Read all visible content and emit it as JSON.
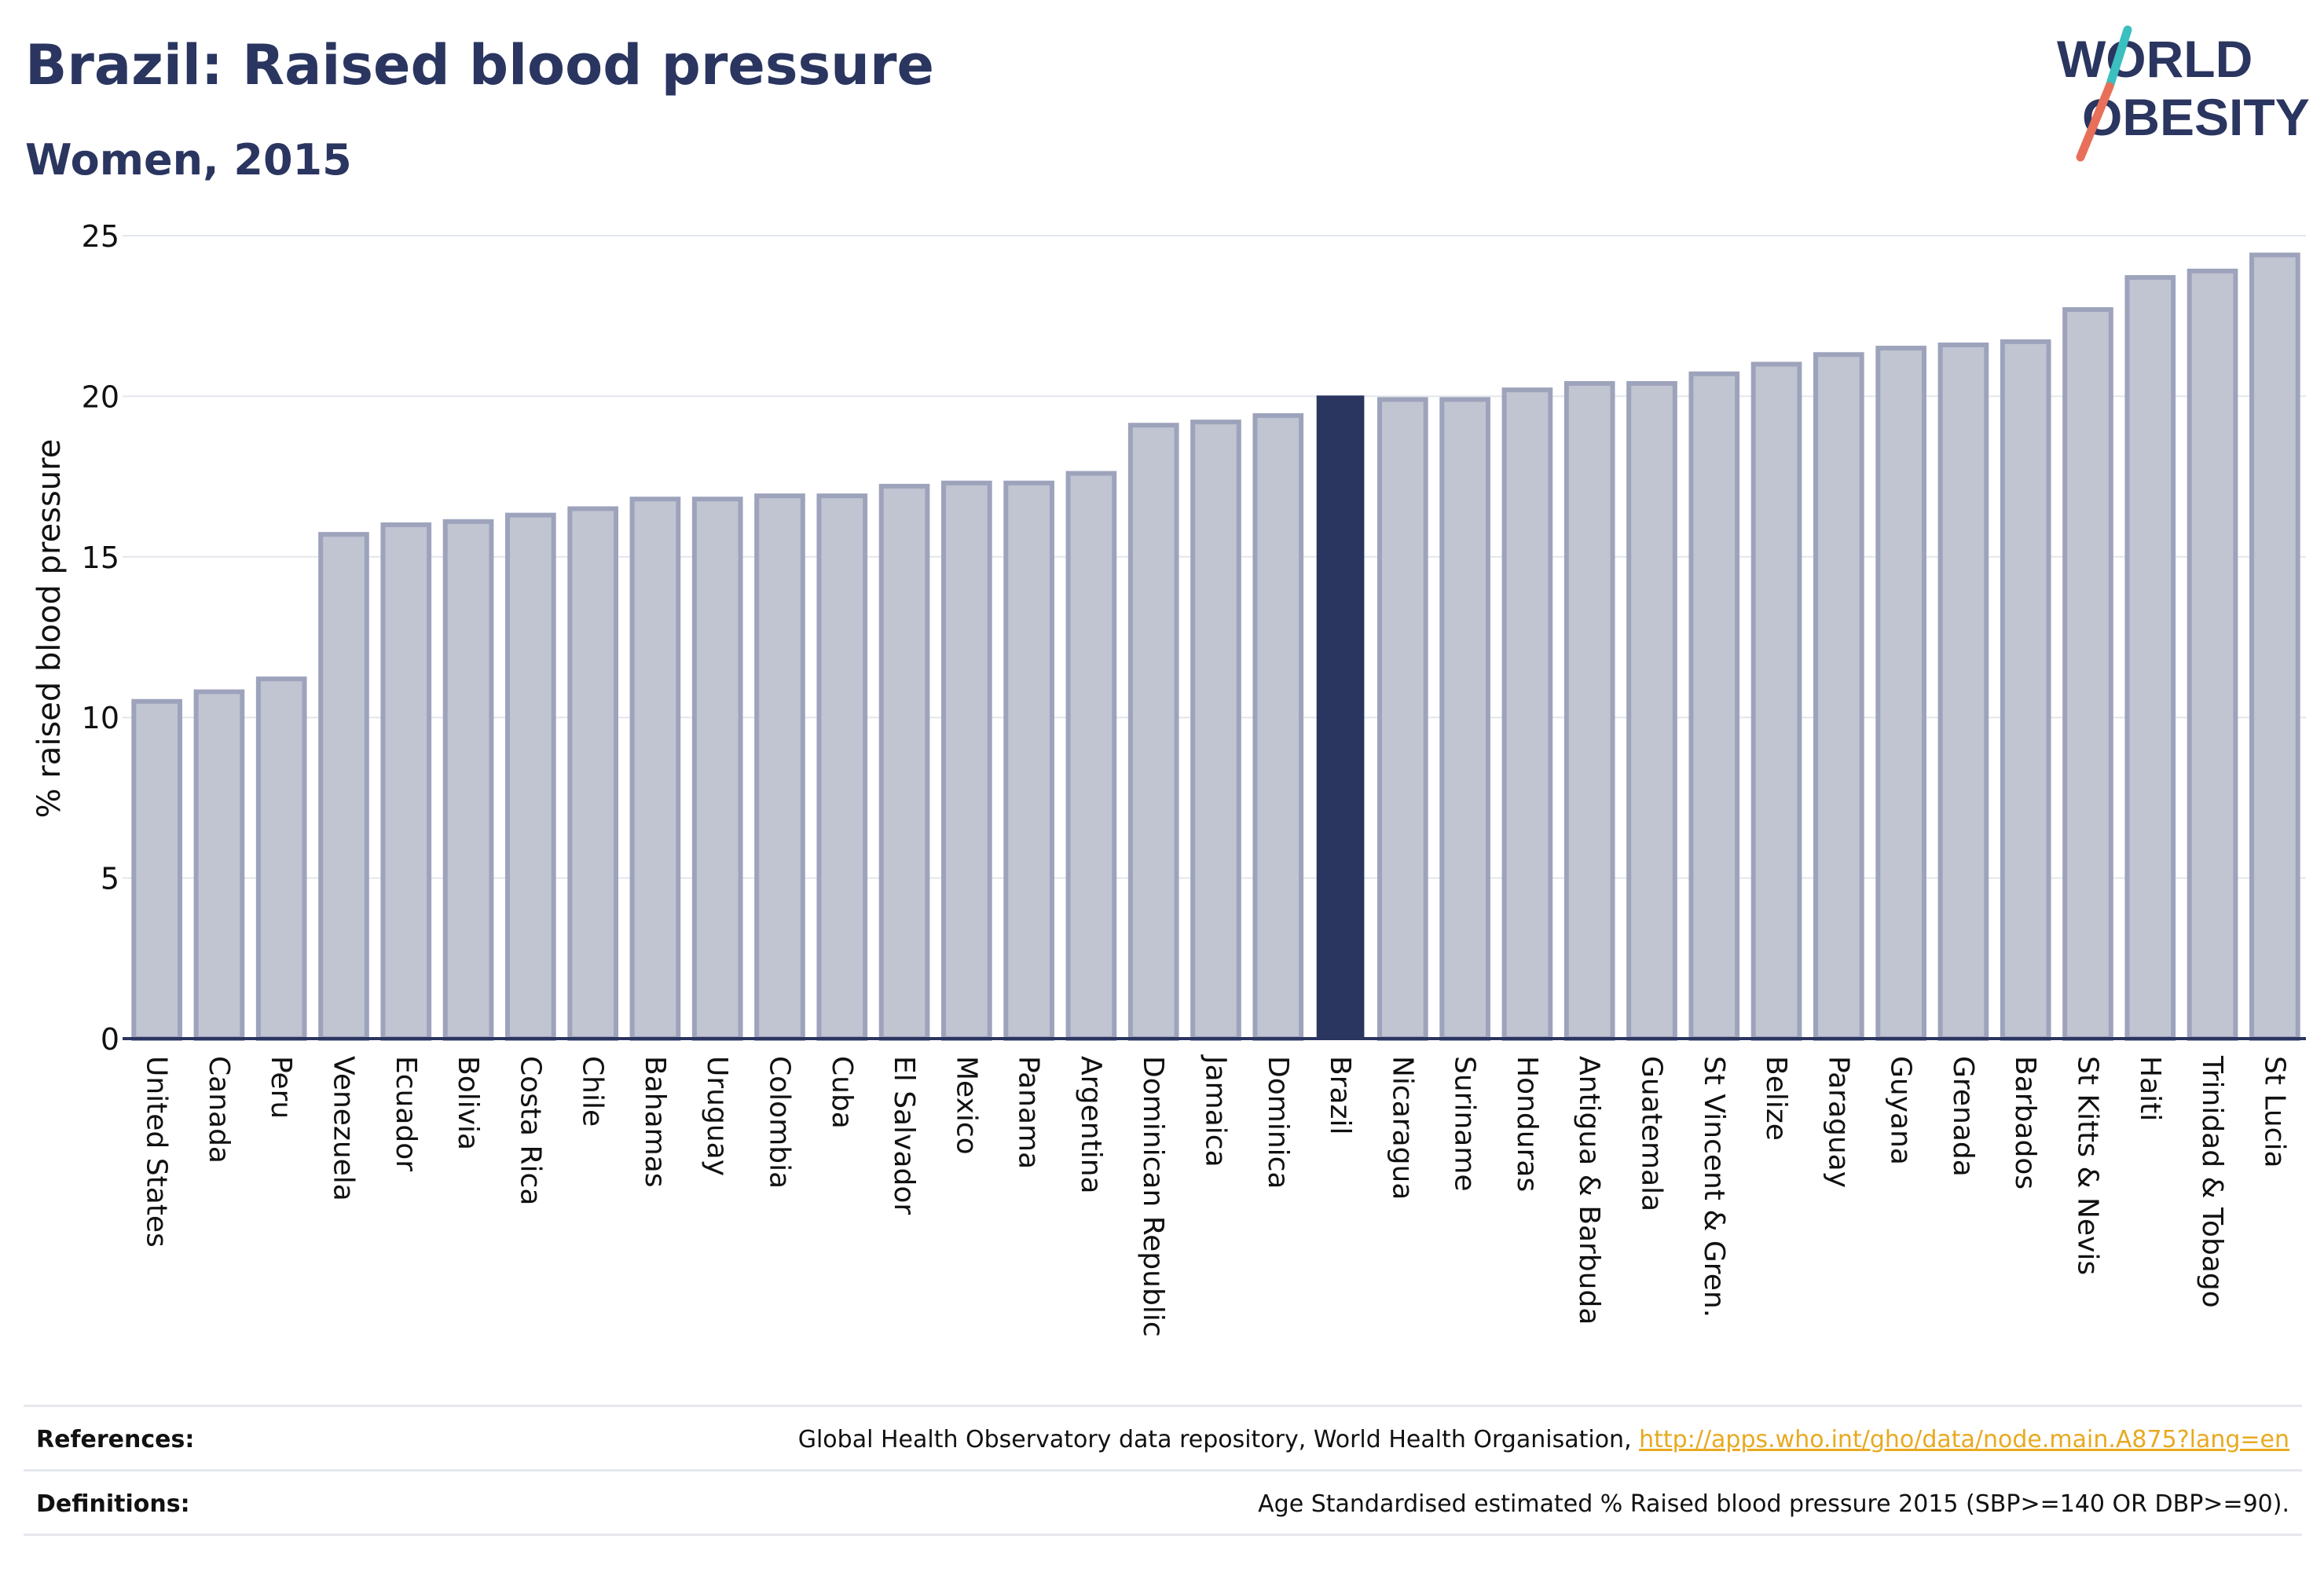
{
  "header": {
    "title": "Brazil: Raised blood pressure",
    "subtitle": "Women, 2015"
  },
  "logo": {
    "line1": "WORLD",
    "line2": "OBESITY",
    "colors": {
      "text": "#2a3560",
      "slash_teal": "#3bbfbf",
      "slash_coral": "#e8705a"
    }
  },
  "chart_data": {
    "type": "bar",
    "ylabel": "% raised blood pressure",
    "ylim": [
      0,
      25
    ],
    "yticks": [
      0,
      5,
      10,
      15,
      20,
      25
    ],
    "grid": true,
    "highlight": "Brazil",
    "colors": {
      "bar": "#c1c4d1",
      "bar_border": "#9ea3bc",
      "highlight": "#2a3560",
      "grid": "#e4e6ec"
    },
    "categories": [
      "United States",
      "Canada",
      "Peru",
      "Venezuela",
      "Ecuador",
      "Bolivia",
      "Costa Rica",
      "Chile",
      "Bahamas",
      "Uruguay",
      "Colombia",
      "Cuba",
      "El Salvador",
      "Mexico",
      "Panama",
      "Argentina",
      "Dominican Republic",
      "Jamaica",
      "Dominica",
      "Brazil",
      "Nicaragua",
      "Suriname",
      "Honduras",
      "Antigua & Barbuda",
      "Guatemala",
      "St Vincent & Gren.",
      "Belize",
      "Paraguay",
      "Guyana",
      "Grenada",
      "Barbados",
      "St Kitts & Nevis",
      "Haiti",
      "Trinidad & Tobago",
      "St Lucia"
    ],
    "values": [
      10.5,
      10.8,
      11.2,
      15.7,
      16.0,
      16.1,
      16.3,
      16.5,
      16.8,
      16.8,
      16.9,
      16.9,
      17.2,
      17.3,
      17.3,
      17.6,
      19.1,
      19.2,
      19.4,
      20.0,
      19.9,
      19.9,
      20.2,
      20.4,
      20.4,
      20.7,
      21.0,
      21.3,
      21.5,
      21.6,
      21.7,
      22.7,
      23.7,
      23.9,
      24.4
    ]
  },
  "footer": {
    "references_label": "References:",
    "references_text": "Global Health Observatory data repository, World Health Organisation, ",
    "references_link": "http://apps.who.int/gho/data/node.main.A875?lang=en",
    "definitions_label": "Definitions:",
    "definitions_text": "Age Standardised estimated % Raised blood pressure 2015 (SBP>=140 OR DBP>=90)."
  }
}
